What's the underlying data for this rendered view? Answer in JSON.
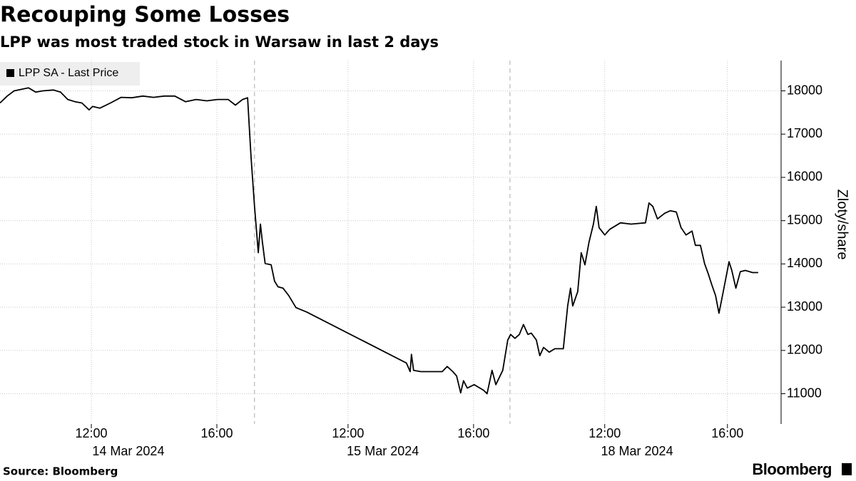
{
  "chart_data": {
    "type": "line",
    "title": "Recouping Some Losses",
    "subtitle": "LPP was most traded stock in Warsaw in last 2 days",
    "source": "Source: Bloomberg",
    "brand": "Bloomberg",
    "y_label": "Zloty/share",
    "legend": "upper left",
    "grid": true,
    "x": [
      0.0,
      0.23,
      0.45,
      0.91,
      1.14,
      1.36,
      1.7,
      1.93,
      2.16,
      2.39,
      2.61,
      2.84,
      2.95,
      3.18,
      3.52,
      3.86,
      4.2,
      4.55,
      4.89,
      5.23,
      5.57,
      5.91,
      6.25,
      6.59,
      6.93,
      7.27,
      7.5,
      7.73,
      7.89,
      8.0,
      8.11,
      8.23,
      8.3,
      8.36,
      8.45,
      8.64,
      8.75,
      8.86,
      9.02,
      9.2,
      9.43,
      9.77,
      12.95,
      13.07,
      13.11,
      13.18,
      13.41,
      14.09,
      14.25,
      14.43,
      14.55,
      14.68,
      14.77,
      14.89,
      15.11,
      15.41,
      15.52,
      15.68,
      15.8,
      16.02,
      16.18,
      16.27,
      16.41,
      16.55,
      16.68,
      16.82,
      16.93,
      17.09,
      17.2,
      17.32,
      17.5,
      17.68,
      17.95,
      18.09,
      18.18,
      18.25,
      18.41,
      18.52,
      18.64,
      18.77,
      18.91,
      19.0,
      19.09,
      19.27,
      19.43,
      19.77,
      20.11,
      20.57,
      20.68,
      20.8,
      20.95,
      21.18,
      21.36,
      21.55,
      21.7,
      21.86,
      22.05,
      22.16,
      22.32,
      22.45,
      22.57,
      22.68,
      22.8,
      22.91,
      23.0,
      23.09,
      23.23,
      23.32,
      23.45,
      23.59,
      23.75,
      23.98,
      24.16
    ],
    "series": [
      {
        "name": "LPP SA - Last Price",
        "color": "#000000",
        "values": [
          17720,
          17880,
          18000,
          18070,
          17970,
          18000,
          18020,
          17970,
          17800,
          17750,
          17720,
          17560,
          17640,
          17600,
          17720,
          17850,
          17840,
          17880,
          17850,
          17880,
          17880,
          17750,
          17800,
          17770,
          17800,
          17800,
          17670,
          17800,
          17840,
          16480,
          15330,
          14260,
          14920,
          14510,
          14010,
          13980,
          13600,
          13470,
          13440,
          13270,
          12990,
          12890,
          11710,
          11510,
          11910,
          11540,
          11510,
          11510,
          11630,
          11510,
          11410,
          11020,
          11300,
          11130,
          11210,
          11080,
          11000,
          11540,
          11210,
          11540,
          12240,
          12370,
          12280,
          12370,
          12600,
          12370,
          12400,
          12240,
          11880,
          12070,
          11960,
          12040,
          12040,
          13030,
          13440,
          13030,
          13360,
          14260,
          13980,
          14510,
          14920,
          15330,
          14840,
          14670,
          14800,
          14950,
          14920,
          14950,
          15410,
          15330,
          15040,
          15170,
          15230,
          15200,
          14840,
          14670,
          14760,
          14430,
          14430,
          14010,
          13770,
          13520,
          13270,
          12860,
          13190,
          13520,
          14050,
          13850,
          13440,
          13820,
          13850,
          13800,
          13800
        ]
      }
    ],
    "xlim": [
      0,
      24.89
    ],
    "xticks": [
      {
        "value": 2.91,
        "label": "12:00"
      },
      {
        "value": 6.91,
        "label": "16:00"
      },
      {
        "value": 11.09,
        "label": "12:00"
      },
      {
        "value": 15.09,
        "label": "16:00"
      },
      {
        "value": 19.27,
        "label": "12:00"
      },
      {
        "value": 23.18,
        "label": "16:00"
      }
    ],
    "x_date_labels": [
      {
        "value": 4.09,
        "label": "14 Mar 2024"
      },
      {
        "value": 12.2,
        "label": "15 Mar 2024"
      },
      {
        "value": 20.3,
        "label": "18 Mar 2024"
      }
    ],
    "day_breaks": [
      8.11,
      16.25
    ],
    "ylim": [
      10300,
      18700
    ],
    "yticks": [
      11000,
      12000,
      13000,
      14000,
      15000,
      16000,
      17000,
      18000
    ]
  }
}
